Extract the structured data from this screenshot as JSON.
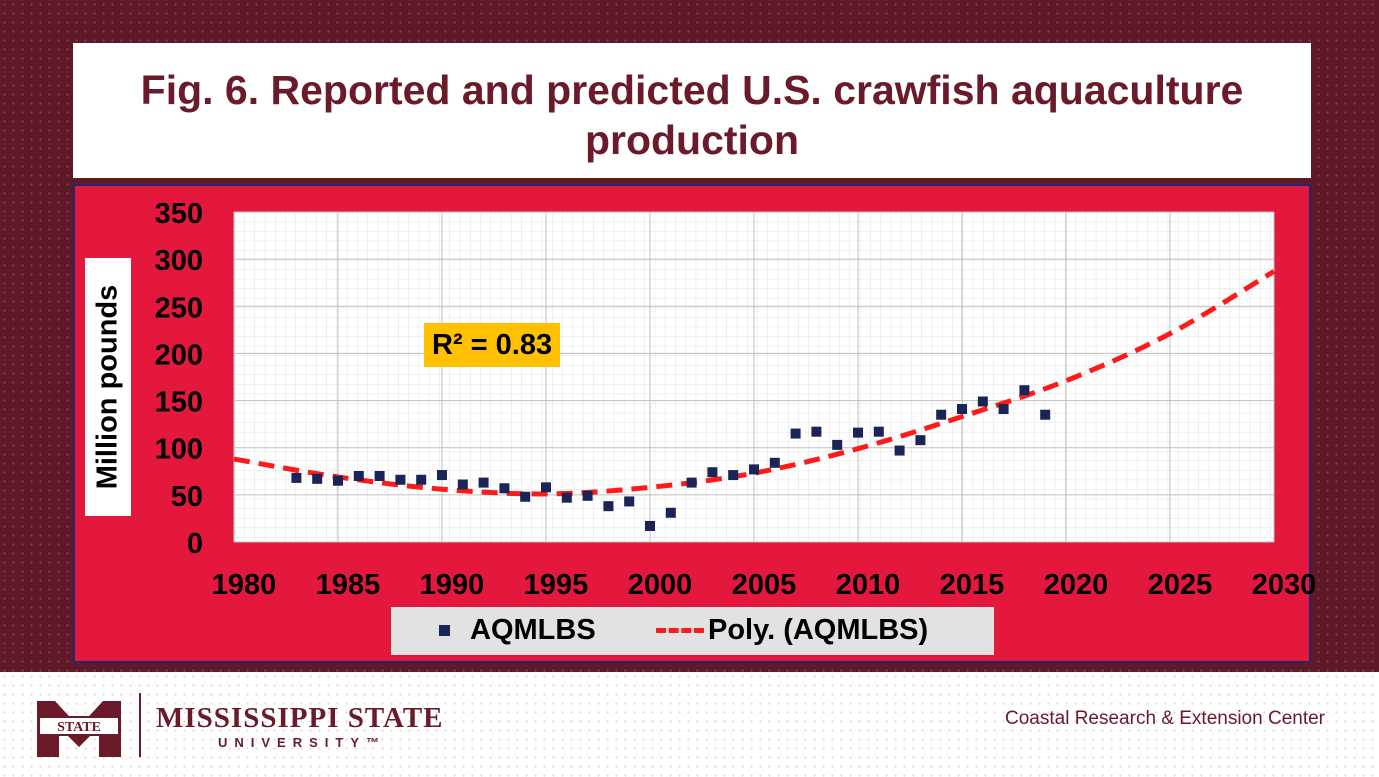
{
  "title": "Fig. 6. Reported and predicted U.S. crawfish aquaculture production",
  "r2_label": "R² = 0.83",
  "legend": {
    "series1": "AQMLBS",
    "series2": "Poly. (AQMLBS)"
  },
  "footer": {
    "university_line1": "MISSISSIPPI STATE",
    "university_line2": "UNIVERSITY™",
    "logo_text": "STATE",
    "center_name": "Coastal Research & Extension Center"
  },
  "colors": {
    "background": "#5e1828",
    "chart_area": "#e4183d",
    "marker": "#1a2456",
    "trend": "#ff1a1a",
    "r2_box": "#ffc000",
    "title": "#6b1a2a"
  },
  "chart_data": {
    "type": "scatter",
    "title": "Fig. 6. Reported and predicted U.S. crawfish aquaculture production",
    "xlabel": "",
    "ylabel": "Million pounds",
    "xlim": [
      1980,
      2030
    ],
    "ylim": [
      0,
      350
    ],
    "xticks": [
      1980,
      1985,
      1990,
      1995,
      2000,
      2005,
      2010,
      2015,
      2020,
      2025,
      2030
    ],
    "yticks": [
      0,
      50,
      100,
      150,
      200,
      250,
      300,
      350
    ],
    "grid": true,
    "legend_position": "bottom",
    "series": [
      {
        "name": "AQMLBS",
        "kind": "scatter",
        "x": [
          1983,
          1984,
          1985,
          1986,
          1987,
          1988,
          1989,
          1990,
          1991,
          1992,
          1993,
          1994,
          1995,
          1996,
          1997,
          1998,
          1999,
          2000,
          2001,
          2002,
          2003,
          2004,
          2005,
          2006,
          2007,
          2008,
          2009,
          2010,
          2011,
          2012,
          2013,
          2014,
          2015,
          2016,
          2017,
          2018,
          2019
        ],
        "y": [
          68,
          67,
          65,
          70,
          70,
          66,
          66,
          71,
          61,
          63,
          57,
          48,
          58,
          47,
          49,
          38,
          43,
          17,
          31,
          63,
          74,
          71,
          77,
          84,
          115,
          117,
          103,
          116,
          117,
          97,
          108,
          135,
          141,
          149,
          141,
          161,
          135
        ]
      },
      {
        "name": "Poly. (AQMLBS)",
        "kind": "trendline",
        "x": [
          1980,
          1985,
          1990,
          1995,
          2000,
          2005,
          2010,
          2015,
          2020,
          2025,
          2030
        ],
        "y": [
          88,
          69,
          56,
          51,
          58,
          73,
          99,
          133,
          171,
          221,
          287
        ]
      }
    ]
  }
}
